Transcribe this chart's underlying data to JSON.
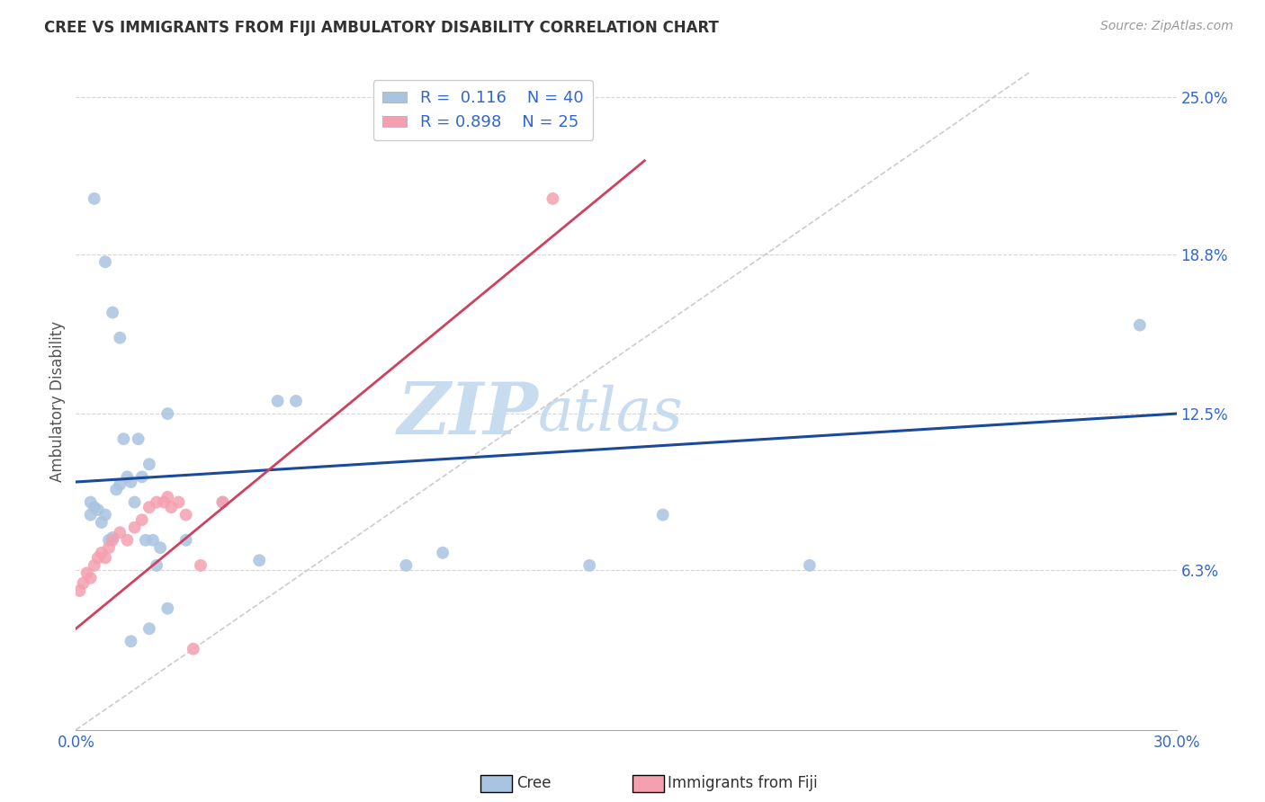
{
  "title": "CREE VS IMMIGRANTS FROM FIJI AMBULATORY DISABILITY CORRELATION CHART",
  "source": "Source: ZipAtlas.com",
  "ylabel": "Ambulatory Disability",
  "xlim": [
    0.0,
    0.3
  ],
  "ylim": [
    0.0,
    0.26
  ],
  "yticks": [
    0.063,
    0.125,
    0.188,
    0.25
  ],
  "ytick_labels": [
    "6.3%",
    "12.5%",
    "18.8%",
    "25.0%"
  ],
  "xticks": [
    0.0,
    0.05,
    0.1,
    0.15,
    0.2,
    0.25,
    0.3
  ],
  "xtick_labels": [
    "0.0%",
    "",
    "",
    "",
    "",
    "",
    "30.0%"
  ],
  "cree_R": 0.116,
  "cree_N": 40,
  "fiji_R": 0.898,
  "fiji_N": 25,
  "cree_color": "#A8C4E0",
  "fiji_color": "#F4A0B0",
  "cree_line_color": "#1A4A9A",
  "fiji_line_color": "#D04060",
  "diagonal_color": "#CCCCCC",
  "bg_color": "#FFFFFF",
  "grid_color": "#CCCCCC",
  "tick_label_color": "#3366CC",
  "title_color": "#333333",
  "cree_x": [
    0.004,
    0.004,
    0.005,
    0.006,
    0.007,
    0.008,
    0.009,
    0.01,
    0.011,
    0.012,
    0.013,
    0.014,
    0.015,
    0.016,
    0.017,
    0.018,
    0.019,
    0.02,
    0.021,
    0.022,
    0.023,
    0.025,
    0.03,
    0.04,
    0.055,
    0.06,
    0.09,
    0.1,
    0.14,
    0.16,
    0.2,
    0.29,
    0.005,
    0.008,
    0.01,
    0.012,
    0.015,
    0.02,
    0.025,
    0.05
  ],
  "cree_y": [
    0.09,
    0.085,
    0.088,
    0.087,
    0.082,
    0.085,
    0.075,
    0.076,
    0.095,
    0.097,
    0.115,
    0.1,
    0.098,
    0.09,
    0.115,
    0.1,
    0.075,
    0.105,
    0.075,
    0.065,
    0.072,
    0.125,
    0.075,
    0.09,
    0.13,
    0.13,
    0.065,
    0.07,
    0.065,
    0.085,
    0.065,
    0.16,
    0.21,
    0.185,
    0.165,
    0.155,
    0.035,
    0.04,
    0.048,
    0.067
  ],
  "fiji_x": [
    0.001,
    0.002,
    0.003,
    0.004,
    0.005,
    0.006,
    0.007,
    0.008,
    0.009,
    0.01,
    0.012,
    0.014,
    0.016,
    0.018,
    0.02,
    0.022,
    0.024,
    0.026,
    0.028,
    0.03,
    0.032,
    0.034,
    0.04,
    0.13,
    0.025
  ],
  "fiji_y": [
    0.055,
    0.058,
    0.062,
    0.06,
    0.065,
    0.068,
    0.07,
    0.068,
    0.072,
    0.075,
    0.078,
    0.075,
    0.08,
    0.083,
    0.088,
    0.09,
    0.09,
    0.088,
    0.09,
    0.085,
    0.032,
    0.065,
    0.09,
    0.21,
    0.092
  ],
  "cree_line_x0": 0.0,
  "cree_line_y0": 0.098,
  "cree_line_x1": 0.3,
  "cree_line_y1": 0.125,
  "fiji_line_x0": 0.0,
  "fiji_line_y0": 0.04,
  "fiji_line_x1": 0.155,
  "fiji_line_y1": 0.225
}
